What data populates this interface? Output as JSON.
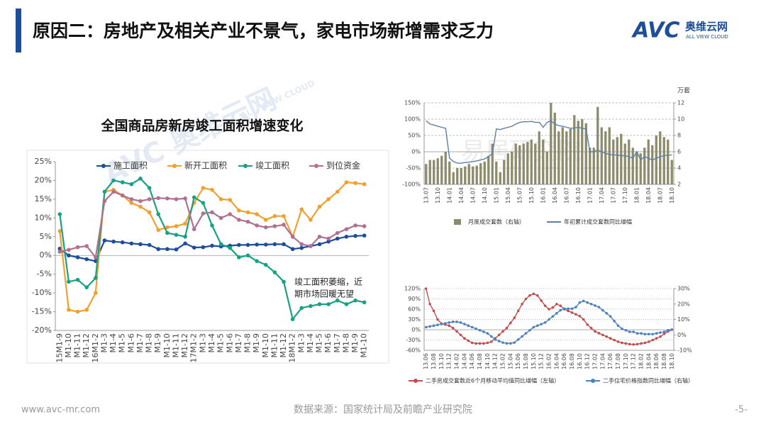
{
  "header": {
    "title": "原因二：房地产及相关产业不景气，家电市场新增需求乏力",
    "logo": {
      "mark": "AVC",
      "name": "奥维云网",
      "tagline": "ALL VIEW CLOUD"
    }
  },
  "watermarks": [
    "AVC 奥维云网",
    "ALL VIEW CLOUD",
    "易居研究院"
  ],
  "footer": {
    "website": "www.avc-mr.com",
    "source": "数据来源：国家统计局及前瞻产业研究院",
    "page": "-5-"
  },
  "chart_data": [
    {
      "type": "line",
      "title": "全国商品房新房竣工面积增速变化",
      "markers": true,
      "legend": "top",
      "categories": [
        "15M1-9",
        "M1-10",
        "M1-11",
        "M1-12",
        "16M1-2",
        "M1-3",
        "M1-4",
        "M1-5",
        "M1-6",
        "M1-7",
        "M1-8",
        "M1-9",
        "M1-10",
        "M1-11",
        "M1-12",
        "17M1-2",
        "M1-3",
        "M1-4",
        "M1-5",
        "M1-6",
        "M1-7",
        "M1-8",
        "M1-9",
        "M1-10",
        "M1-11",
        "M1-12",
        "18M1-2",
        "M1-3",
        "M1-4",
        "M1-5",
        "M1-6",
        "M1-7",
        "M1-8",
        "M1-9",
        "M1-10"
      ],
      "series": [
        {
          "name": "施工面积",
          "color": "#1f4e99",
          "values": [
            1.8,
            0,
            -0.5,
            -1,
            -1.5,
            4,
            3.7,
            3.5,
            3.2,
            3,
            2.8,
            1.7,
            1.7,
            1.6,
            3.2,
            2.1,
            2.2,
            2.6,
            2.4,
            2.6,
            2.8,
            2.8,
            2.9,
            2.9,
            3,
            3,
            1.7,
            2,
            2.5,
            3,
            3.7,
            4.5,
            5,
            5.2,
            5.3
          ]
        },
        {
          "name": "新开工面积",
          "color": "#f0a030",
          "values": [
            6.5,
            -14.5,
            -15,
            -14.5,
            -10,
            17,
            17.5,
            16,
            14,
            13,
            11.5,
            6.8,
            7.5,
            7.8,
            8.5,
            14,
            18,
            17.5,
            15,
            14.8,
            12,
            11.5,
            11,
            9.5,
            10.5,
            10.5,
            5,
            12.3,
            9.5,
            13,
            15,
            17,
            19.5,
            19.3,
            19
          ]
        },
        {
          "name": "竣工面积",
          "color": "#1aa083",
          "values": [
            11,
            -7,
            -6.5,
            -8.5,
            -6,
            17,
            20,
            19.5,
            19,
            20.5,
            18,
            11,
            6,
            5.5,
            5,
            15.5,
            14,
            8,
            3,
            2,
            -0.5,
            0,
            -1.5,
            -2.5,
            -4.5,
            -7,
            -17,
            -14,
            -13.5,
            -13,
            -13,
            -12,
            -13,
            -12,
            -12.5
          ]
        },
        {
          "name": "到位资金",
          "color": "#b07090",
          "values": [
            1,
            1.5,
            2.2,
            2.5,
            -0.5,
            14.5,
            17,
            16,
            15,
            14.5,
            15,
            15.3,
            15.2,
            15,
            15.2,
            7,
            11.2,
            11.5,
            10,
            11,
            9.5,
            9,
            8,
            7.5,
            7.8,
            8.2,
            5,
            3,
            2.5,
            5,
            4.5,
            6,
            7,
            8,
            7.8
          ]
        }
      ],
      "ylim": [
        -20,
        25
      ],
      "yticks": [
        {
          "value": -20,
          "label": "-20%"
        },
        {
          "value": -15,
          "label": "-15%"
        },
        {
          "value": -10,
          "label": "-10%"
        },
        {
          "value": -5,
          "label": "-5%"
        },
        {
          "value": 0,
          "label": "0%"
        },
        {
          "value": 5,
          "label": "5%"
        },
        {
          "value": 10,
          "label": "10%"
        },
        {
          "value": 15,
          "label": "15%"
        },
        {
          "value": 20,
          "label": "20%"
        },
        {
          "value": 25,
          "label": "25%"
        }
      ],
      "grid": false,
      "annotation": [
        "竣工面积萎缩，近",
        "期市场回暖无望"
      ]
    },
    {
      "type": "bar",
      "legend": "bottom",
      "y2label": "万套",
      "categories": [
        "13.07",
        null,
        null,
        "13.10",
        null,
        null,
        "14.01",
        null,
        null,
        "14.04",
        null,
        null,
        "14.07",
        null,
        null,
        "14.10",
        null,
        null,
        "15.01",
        null,
        null,
        "15.04",
        null,
        null,
        "15.07",
        null,
        null,
        "15.10",
        null,
        null,
        "16.01",
        null,
        null,
        "16.04",
        null,
        null,
        "16.07",
        null,
        null,
        "16.10",
        null,
        null,
        "17.01",
        null,
        null,
        "17.04",
        null,
        null,
        "17.07",
        null,
        null,
        "17.10",
        null,
        null,
        "18.01",
        null,
        null,
        "18.04",
        null,
        null,
        "18.07",
        null,
        null,
        "18.10"
      ],
      "series": [
        {
          "name": "月度成交套数（右轴）",
          "type": "bar",
          "axis": "y2",
          "color": "#8c8c6c",
          "values": [
            4.5,
            5,
            5,
            5.2,
            5.5,
            6,
            4.8,
            3.5,
            4,
            4,
            4.2,
            4.5,
            4.2,
            4.3,
            4.6,
            4.8,
            5.5,
            7,
            4.8,
            3.5,
            5,
            5.8,
            6,
            7,
            6.8,
            7,
            7.2,
            7.5,
            7,
            8.5,
            7.5,
            6,
            12,
            10.8,
            8.5,
            9,
            8.5,
            8.8,
            10.5,
            9.8,
            10,
            9.5,
            6.5,
            6.5,
            11.5,
            9,
            8.5,
            9,
            7.5,
            7.8,
            8.2,
            7,
            7.5,
            6.5,
            6,
            5.8,
            6.5,
            7.5,
            6.8,
            8,
            8.5,
            7.8,
            7.5,
            5
          ]
        },
        {
          "name": "年初累计成交套数同比增幅",
          "type": "line",
          "color": "#5b7fa6",
          "values": [
            95,
            85,
            82,
            78,
            75,
            72,
            -20,
            -30,
            -35,
            -35,
            -33,
            -32,
            -30,
            -28,
            -25,
            -22,
            -15,
            -5,
            70,
            68,
            72,
            75,
            78,
            85,
            90,
            92,
            92,
            93,
            90,
            90,
            75,
            90,
            95,
            85,
            80,
            78,
            75,
            72,
            73,
            75,
            72,
            70,
            0,
            0,
            5,
            0,
            -5,
            -8,
            -10,
            -10,
            -12,
            -12,
            -15,
            -20,
            0,
            -25,
            -15,
            -20,
            -25,
            -20,
            -15,
            -12,
            -10,
            -10
          ]
        }
      ],
      "ylim": [
        -100,
        150
      ],
      "yticks": [
        {
          "value": -100,
          "label": "-100%"
        },
        {
          "value": -50,
          "label": "-50%"
        },
        {
          "value": 0,
          "label": "0%"
        },
        {
          "value": 50,
          "label": "50%"
        },
        {
          "value": 100,
          "label": "100%"
        },
        {
          "value": 150,
          "label": "150%"
        }
      ],
      "y2lim": [
        2,
        12
      ],
      "y2ticks": [
        2,
        4,
        6,
        8,
        10,
        12
      ],
      "grid": true
    },
    {
      "type": "line",
      "legend": "bottom",
      "markers": true,
      "categories": [
        "13.06",
        null,
        "13.08",
        null,
        "13.10",
        null,
        "13.12",
        null,
        "14.02",
        null,
        "14.04",
        null,
        "14.06",
        null,
        "14.08",
        null,
        "14.10",
        null,
        "14.12",
        null,
        "15.02",
        null,
        "15.04",
        null,
        "15.06",
        null,
        "15.08",
        null,
        "15.10",
        null,
        "15.12",
        null,
        "16.02",
        null,
        "16.04",
        null,
        "16.06",
        null,
        "16.08",
        null,
        "16.10",
        null,
        "16.12",
        null,
        "17.02",
        null,
        "17.04",
        null,
        "17.06",
        null,
        "17.08",
        null,
        "17.10",
        null,
        "17.12",
        null,
        "18.02",
        null,
        "18.04",
        null,
        "18.06",
        null,
        "18.08",
        null,
        "18.10"
      ],
      "series": [
        {
          "name": "二手房成交套数近6个月移动平均值同比增幅（左轴）",
          "color": "#c0504d",
          "values": [
            120,
            75,
            55,
            30,
            18,
            15,
            12,
            5,
            -5,
            -15,
            -25,
            -32,
            -38,
            -40,
            -40,
            -40,
            -38,
            -35,
            -25,
            -15,
            -5,
            5,
            20,
            35,
            55,
            75,
            90,
            100,
            105,
            100,
            85,
            70,
            60,
            65,
            75,
            70,
            60,
            55,
            50,
            45,
            40,
            30,
            15,
            5,
            -5,
            -10,
            -15,
            -20,
            -25,
            -30,
            -35,
            -38,
            -40,
            -42,
            -43,
            -42,
            -40,
            -38,
            -35,
            -30,
            -25,
            -20,
            -12,
            -5,
            0
          ]
        },
        {
          "name": "二手住宅价格指数同比增幅（右轴）",
          "axis": "y2",
          "color": "#4f81bd",
          "values": [
            5,
            5.5,
            6,
            6.5,
            7,
            7.5,
            8,
            8.5,
            8.5,
            8,
            7,
            6,
            5,
            4,
            3,
            2,
            1,
            -1,
            -3,
            -4,
            -5,
            -5.5,
            -5.5,
            -5,
            -3,
            -1,
            1,
            3,
            5,
            6,
            7,
            8,
            10,
            12,
            14,
            16,
            17,
            17,
            17,
            18,
            21,
            22,
            21,
            20,
            19,
            18,
            16,
            14,
            12,
            9,
            6,
            4,
            3,
            2,
            2,
            1,
            1,
            0.5,
            0.5,
            0.5,
            1,
            1.5,
            2,
            3,
            3.5
          ]
        }
      ],
      "ylim": [
        -60,
        120
      ],
      "yticks": [
        {
          "value": -60,
          "label": "-60%"
        },
        {
          "value": -30,
          "label": "-30%"
        },
        {
          "value": 0,
          "label": "0%"
        },
        {
          "value": 30,
          "label": "30%"
        },
        {
          "value": 60,
          "label": "60%"
        },
        {
          "value": 90,
          "label": "90%"
        },
        {
          "value": 120,
          "label": "120%"
        }
      ],
      "y2lim": [
        -10,
        30
      ],
      "y2ticks": [
        {
          "value": -10,
          "label": "-10%"
        },
        {
          "value": 0,
          "label": "0%"
        },
        {
          "value": 10,
          "label": "10%"
        },
        {
          "value": 20,
          "label": "20%"
        },
        {
          "value": 30,
          "label": "30%"
        }
      ],
      "grid": true
    }
  ]
}
